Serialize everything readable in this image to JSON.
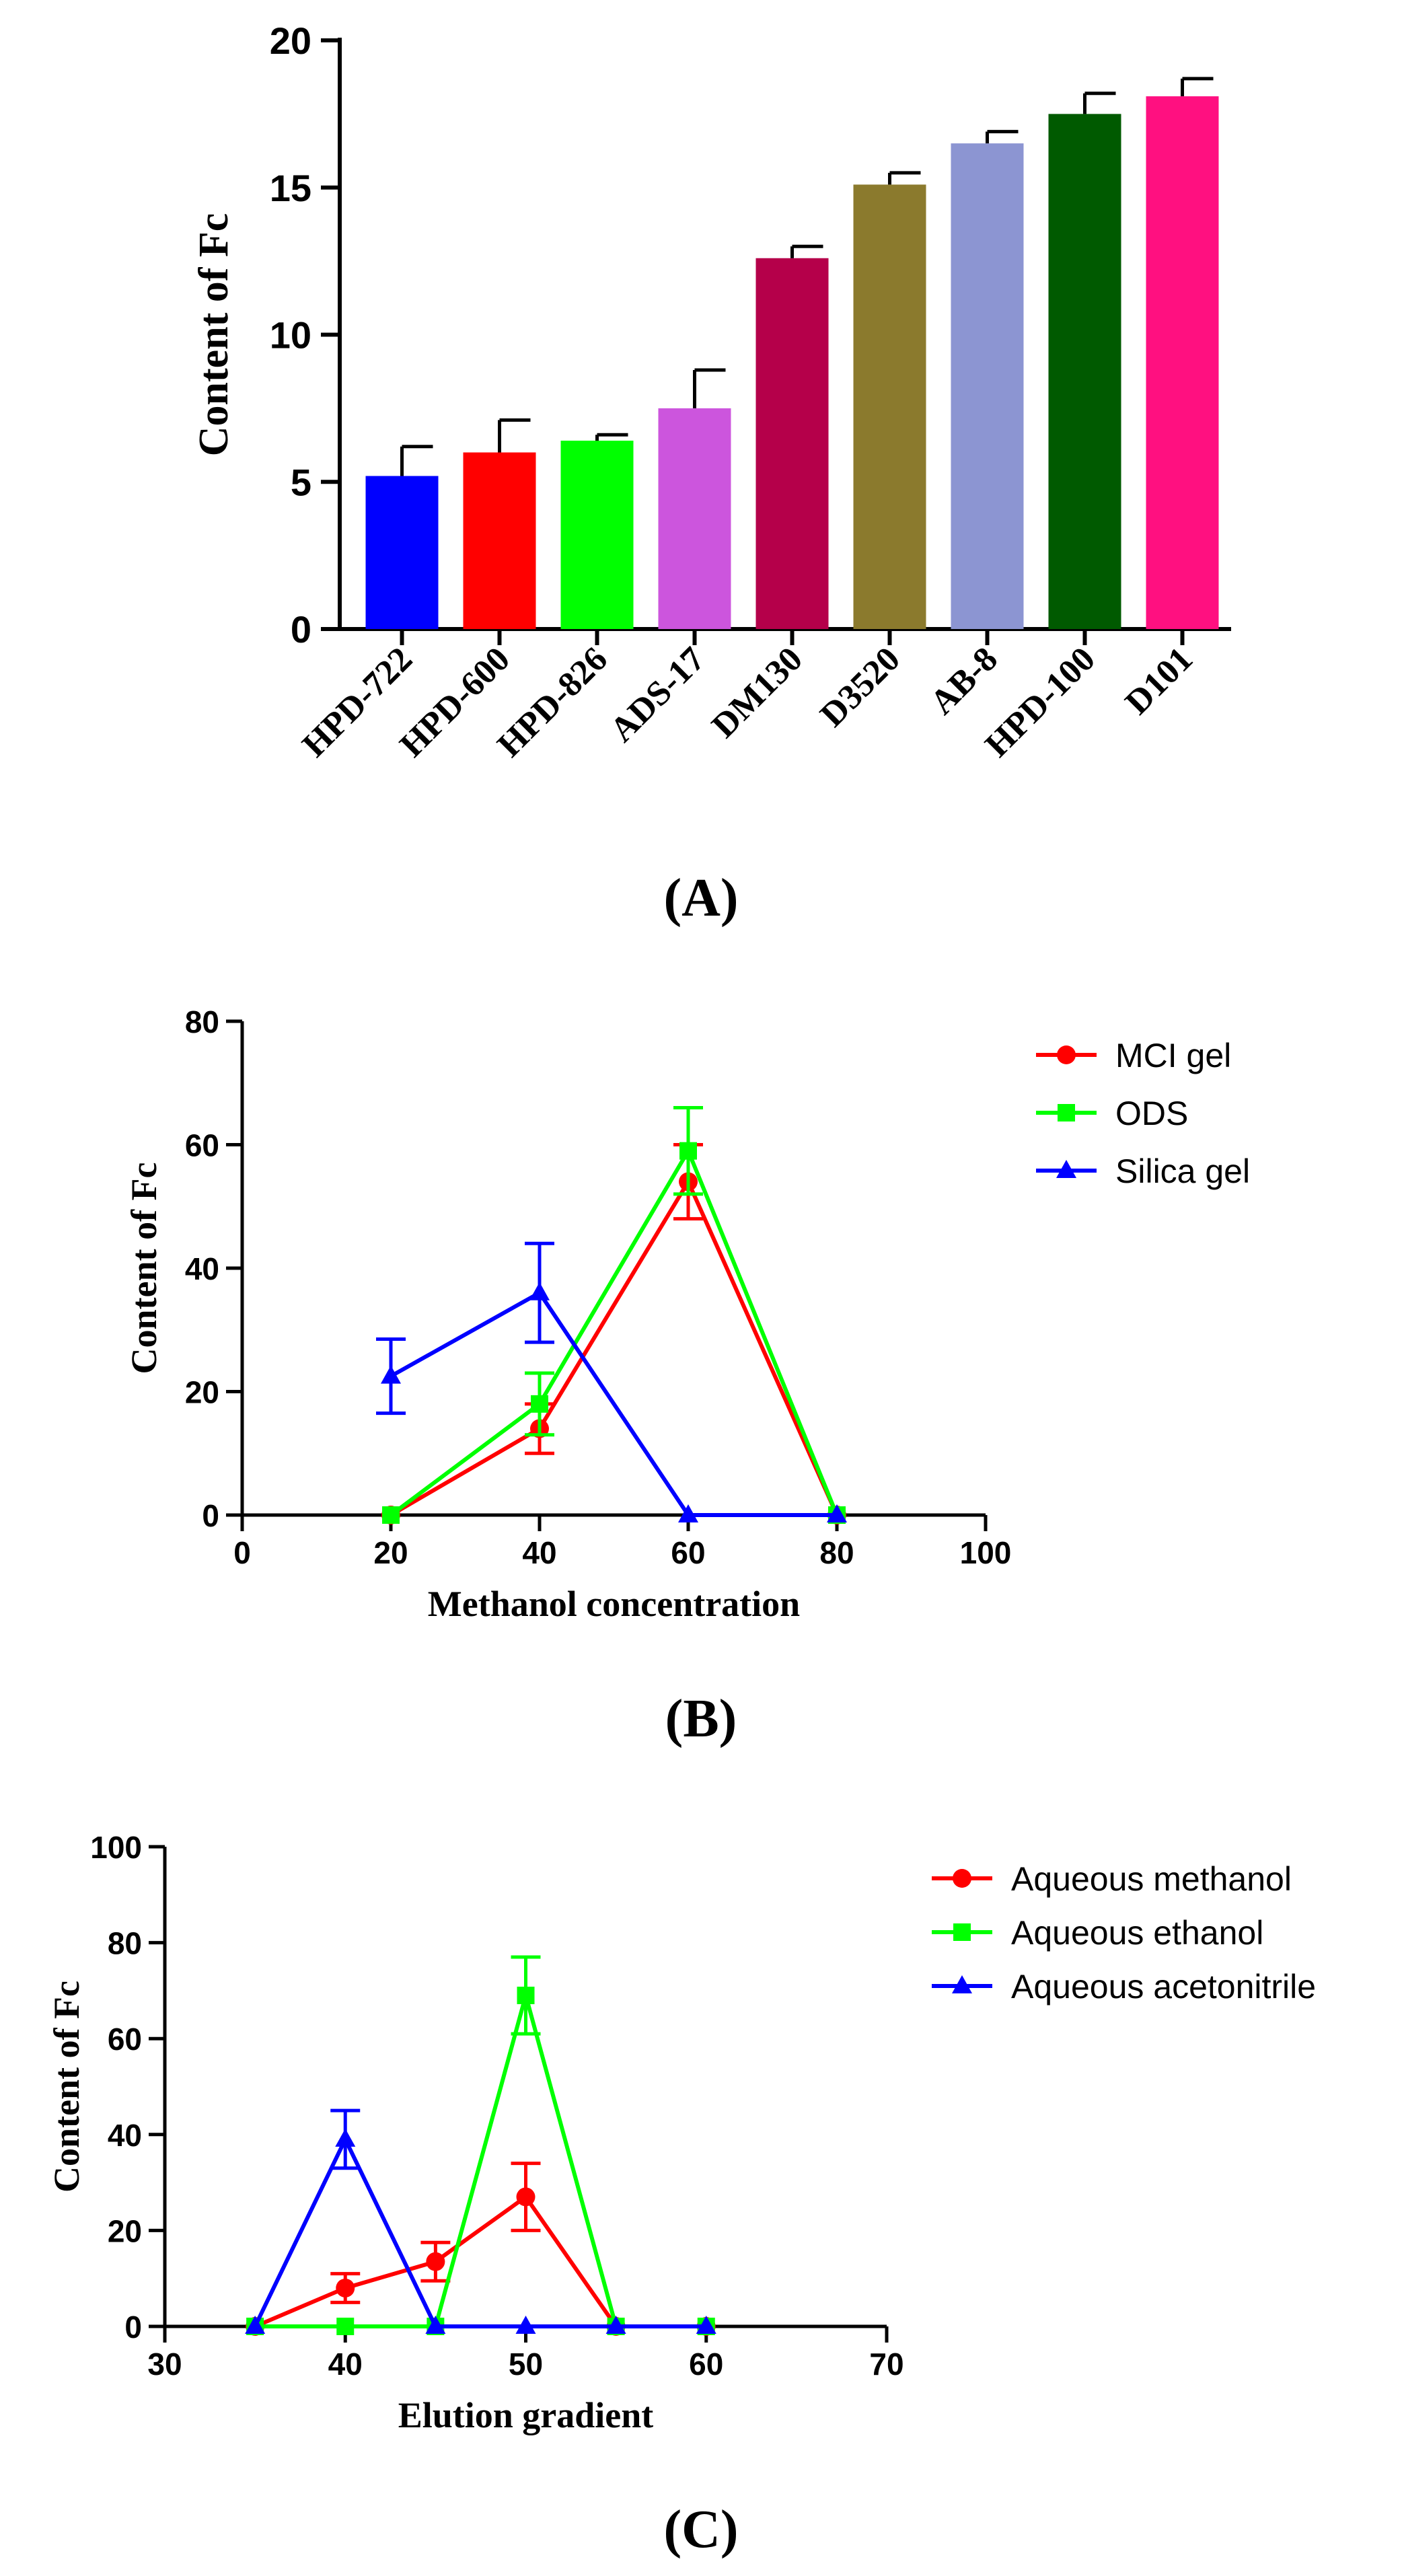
{
  "chart_data": [
    {
      "type": "bar",
      "panel_label": "(A)",
      "title": "",
      "xlabel": "",
      "ylabel": "Content of Fc",
      "ylim": [
        0,
        20
      ],
      "yticks": [
        "0",
        "5",
        "10",
        "15",
        "20"
      ],
      "categories": [
        "HPD-722",
        "HPD-600",
        "HPD-826",
        "ADS-17",
        "DM130",
        "D3520",
        "AB-8",
        "HPD-100",
        "D101"
      ],
      "values": [
        5.2,
        6.0,
        6.4,
        7.5,
        12.6,
        15.1,
        16.5,
        17.5,
        18.1
      ],
      "errors": [
        1.0,
        1.1,
        0.2,
        1.3,
        0.4,
        0.4,
        0.4,
        0.7,
        0.6
      ],
      "colors": [
        "#0000ff",
        "#ff0000",
        "#00ff00",
        "#cc55dd",
        "#b5004a",
        "#8b7a2d",
        "#8c95d2",
        "#005a00",
        "#ff1080"
      ]
    },
    {
      "type": "line",
      "panel_label": "(B)",
      "xlabel": "Methanol concentration",
      "ylabel": "Content of Fc",
      "xlim": [
        0,
        100
      ],
      "ylim": [
        0,
        80
      ],
      "xticks": [
        "0",
        "20",
        "40",
        "60",
        "80",
        "100"
      ],
      "yticks": [
        "0",
        "20",
        "40",
        "60",
        "80"
      ],
      "legend_position": "top-right",
      "series": [
        {
          "name": "MCI gel",
          "color": "#ff0000",
          "marker": "circle",
          "x": [
            20,
            40,
            60,
            80
          ],
          "y": [
            0,
            14,
            54,
            0
          ],
          "err": [
            0,
            4,
            6,
            0
          ]
        },
        {
          "name": "ODS",
          "color": "#00ff00",
          "marker": "square",
          "x": [
            20,
            40,
            60,
            80
          ],
          "y": [
            0,
            18,
            59,
            0
          ],
          "err": [
            0,
            5,
            7,
            0
          ]
        },
        {
          "name": "Silica gel",
          "color": "#0000ff",
          "marker": "triangle",
          "x": [
            20,
            40,
            60,
            80
          ],
          "y": [
            22.5,
            36,
            0,
            0
          ],
          "err": [
            6,
            8,
            0,
            0
          ]
        }
      ]
    },
    {
      "type": "line",
      "panel_label": "(C)",
      "xlabel": "Elution gradient",
      "ylabel": "Content of Fc",
      "xlim": [
        30,
        70
      ],
      "ylim": [
        0,
        100
      ],
      "xticks": [
        "30",
        "40",
        "50",
        "60",
        "70"
      ],
      "yticks": [
        "0",
        "20",
        "40",
        "60",
        "80",
        "100"
      ],
      "legend_position": "top-right",
      "series": [
        {
          "name": "Aqueous methanol",
          "color": "#ff0000",
          "marker": "circle",
          "x": [
            35,
            40,
            45,
            50,
            55,
            60
          ],
          "y": [
            0,
            8,
            13.5,
            27,
            0,
            0
          ],
          "err": [
            0,
            3,
            4,
            7,
            0,
            0
          ]
        },
        {
          "name": "Aqueous ethanol",
          "color": "#00ff00",
          "marker": "square",
          "x": [
            35,
            40,
            45,
            50,
            55,
            60
          ],
          "y": [
            0,
            0,
            0,
            69,
            0,
            0
          ],
          "err": [
            0,
            0,
            0,
            8,
            0,
            0
          ]
        },
        {
          "name": "Aqueous acetonitrile",
          "color": "#0000ff",
          "marker": "triangle",
          "x": [
            35,
            40,
            45,
            50,
            55,
            60
          ],
          "y": [
            0,
            39,
            0,
            0,
            0,
            0
          ],
          "err": [
            0,
            6,
            0,
            0,
            0,
            0
          ]
        }
      ]
    }
  ]
}
